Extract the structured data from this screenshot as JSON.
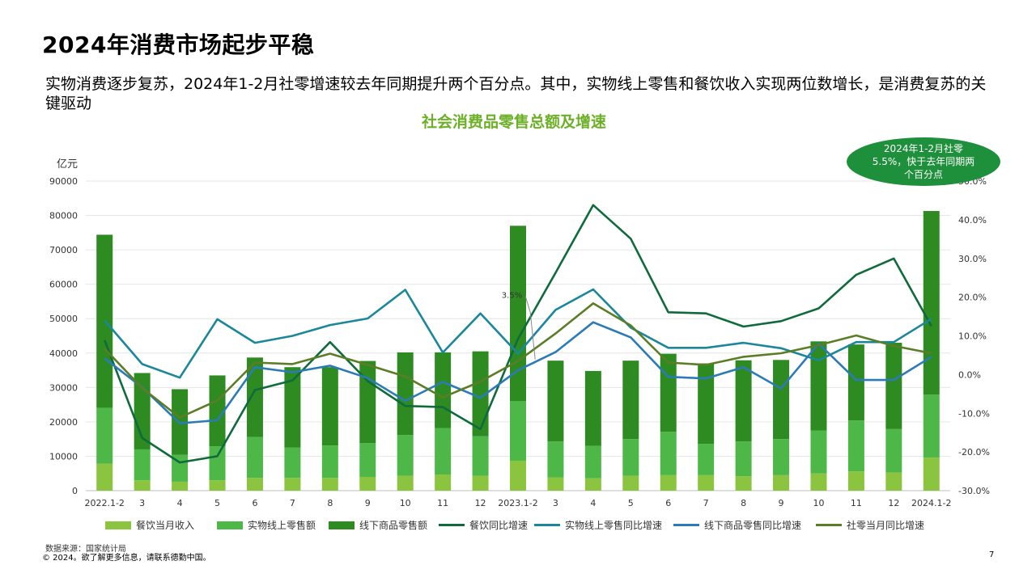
{
  "page": {
    "title": "2024年消费市场起步平稳",
    "subtitle": "实物消费逐步复苏，2024年1-2月社零增速较去年同期提升两个百分点。其中，实物线上零售和餐饮收入实现两位数增长，是消费复苏的关键驱动",
    "callout": "2024年1-2月社零5.5%，快于去年同期两个百分点",
    "source": "数据来源：国家统计局",
    "copyright": "© 2024。欲了解更多信息，请联系德勤中国。",
    "page_number": "7"
  },
  "chart_data": {
    "type": "bar",
    "stacked": true,
    "title": "社会消费品零售总额及增速",
    "ylabel": "亿元",
    "ylim": [
      0,
      90000
    ],
    "yticks": [
      "0",
      "10000",
      "20000",
      "30000",
      "40000",
      "50000",
      "60000",
      "70000",
      "80000",
      "90000"
    ],
    "y2lim": [
      -30,
      50
    ],
    "y2ticks": [
      "-30.0%",
      "-20.0%",
      "-10.0%",
      "0.0%",
      "10.0%",
      "20.0%",
      "30.0%",
      "40.0%",
      "50.0%"
    ],
    "annotation": {
      "text": "3.5%",
      "category_index": 12,
      "value": 3.5
    },
    "grid": true,
    "legend_position": "bottom",
    "categories": [
      "2022.1-2",
      "3",
      "4",
      "5",
      "6",
      "7",
      "8",
      "9",
      "10",
      "11",
      "12",
      "2023.1-2",
      "3",
      "4",
      "5",
      "6",
      "7",
      "8",
      "9",
      "10",
      "11",
      "12",
      "2024.1-2"
    ],
    "bar_series": [
      {
        "name": "餐饮当月收入",
        "color": "#8BC53F",
        "values": [
          7800,
          3000,
          2600,
          3000,
          3700,
          3700,
          3700,
          4000,
          4300,
          4700,
          4300,
          8700,
          3800,
          3600,
          4300,
          4500,
          4500,
          4200,
          4500,
          5000,
          5600,
          5300,
          9600
        ]
      },
      {
        "name": "实物线上零售额",
        "color": "#4DB848",
        "values": [
          16300,
          9000,
          7800,
          9900,
          11900,
          8800,
          9400,
          9800,
          11900,
          13500,
          11500,
          17300,
          10500,
          9400,
          10700,
          12600,
          9100,
          10100,
          10500,
          12500,
          14800,
          12600,
          18300
        ]
      },
      {
        "name": "线下商品零售额",
        "color": "#2E8B22",
        "values": [
          50300,
          22200,
          19100,
          20600,
          23100,
          23400,
          22800,
          23900,
          24000,
          22000,
          24700,
          51000,
          23500,
          21800,
          22800,
          22700,
          23400,
          23600,
          23000,
          25900,
          22100,
          25100,
          53400
        ]
      }
    ],
    "line_series": [
      {
        "name": "餐饮同比增速",
        "color": "#0F6B3C",
        "values": [
          8.9,
          -16.4,
          -22.7,
          -21.1,
          -4.0,
          -1.5,
          8.4,
          -1.7,
          -8.1,
          -8.4,
          -14.1,
          9.2,
          26.3,
          43.8,
          35.1,
          16.1,
          15.8,
          12.4,
          13.8,
          17.1,
          25.8,
          30.0,
          12.5
        ]
      },
      {
        "name": "实物线上零售同比增速",
        "color": "#1A879A",
        "values": [
          14.0,
          2.7,
          -0.8,
          14.3,
          8.2,
          10.0,
          12.8,
          14.5,
          21.9,
          5.7,
          15.8,
          5.4,
          16.7,
          22.0,
          12.1,
          6.9,
          6.9,
          8.2,
          6.8,
          3.7,
          8.4,
          8.4,
          14.4
        ]
      },
      {
        "name": "线下商品零售同比增速",
        "color": "#2B7BB6",
        "values": [
          4.2,
          -3.3,
          -12.6,
          -11.8,
          1.9,
          0.6,
          2.3,
          -0.9,
          -6.8,
          -1.9,
          -6.0,
          1.1,
          5.8,
          13.5,
          9.6,
          -0.6,
          -1.0,
          1.9,
          -3.6,
          8.0,
          -1.4,
          -1.4,
          4.6
        ]
      },
      {
        "name": "社零当月同比增速",
        "color": "#5B7D26",
        "values": [
          6.7,
          -3.5,
          -11.1,
          -6.7,
          3.1,
          2.7,
          5.4,
          2.5,
          -0.5,
          -5.9,
          -1.8,
          3.5,
          10.6,
          18.4,
          12.7,
          3.1,
          2.5,
          4.6,
          5.5,
          7.6,
          10.1,
          7.4,
          5.5
        ]
      }
    ]
  }
}
